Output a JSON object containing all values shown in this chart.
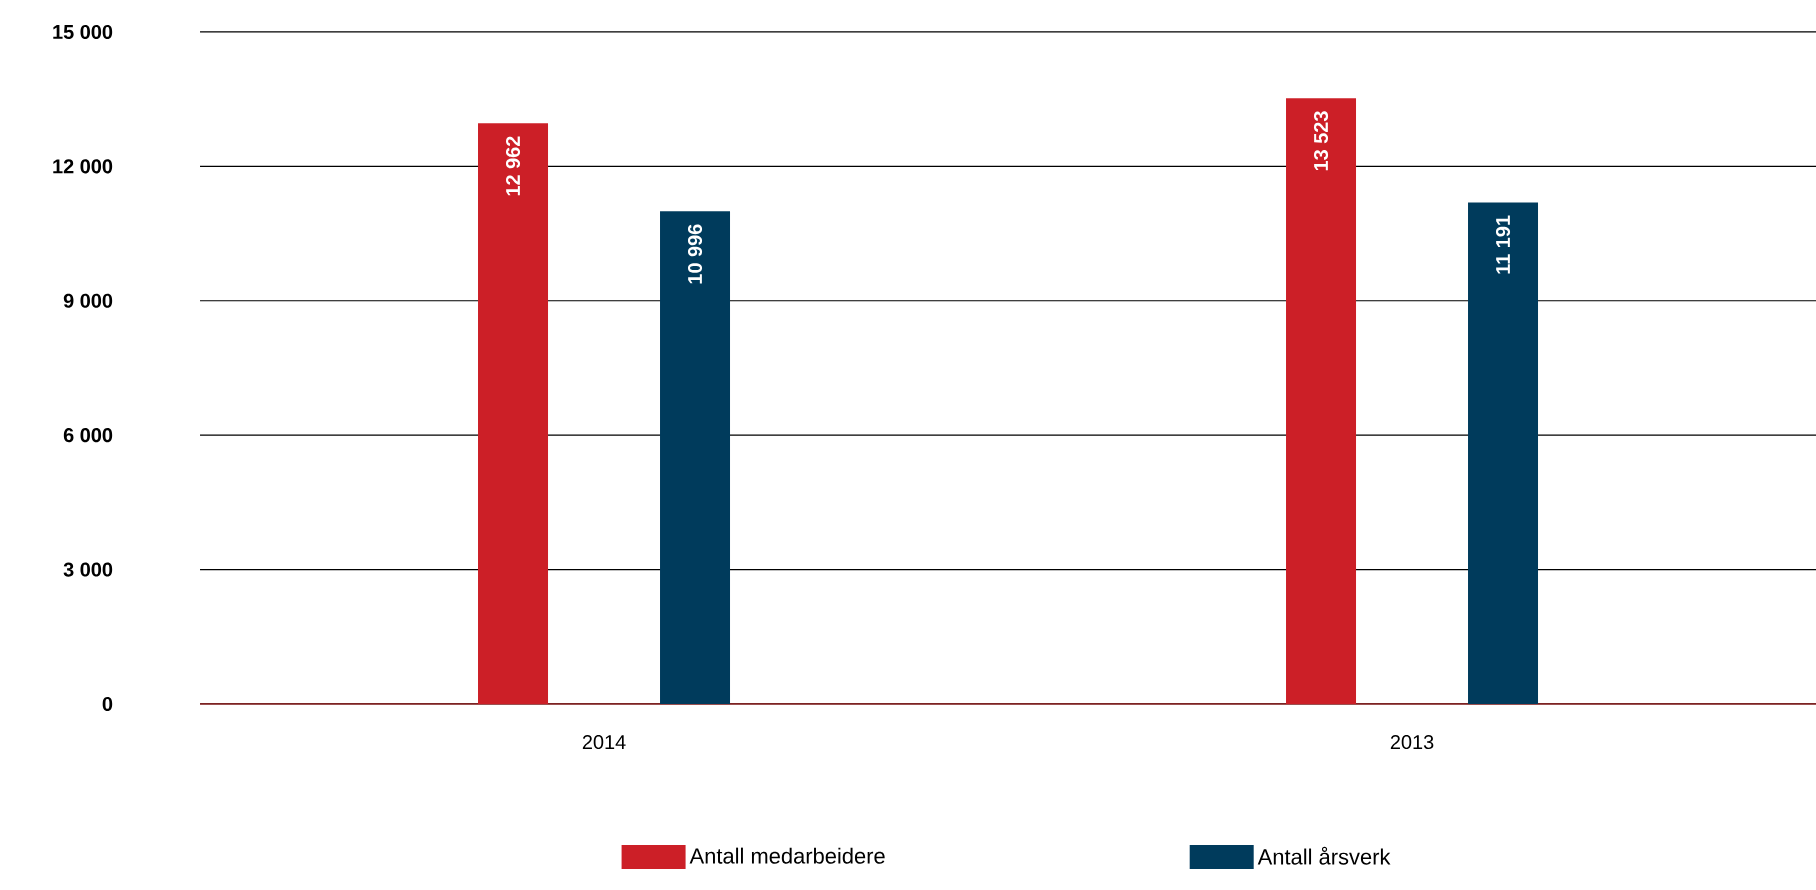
{
  "chart_data": {
    "type": "bar",
    "categories": [
      "2014",
      "2013"
    ],
    "series": [
      {
        "name": "Antall medarbeidere",
        "color": "#cc1f27",
        "values": [
          12962,
          13523
        ],
        "value_labels": [
          "12 962",
          "13 523"
        ]
      },
      {
        "name": "Antall årsverk",
        "color": "#003b5c",
        "values": [
          10996,
          11191
        ],
        "value_labels": [
          "10 996",
          "11 191"
        ]
      }
    ],
    "ylim": [
      0,
      15000
    ],
    "yticks": [
      {
        "value": 0,
        "label": "0"
      },
      {
        "value": 3000,
        "label": "3 000"
      },
      {
        "value": 6000,
        "label": "6 000"
      },
      {
        "value": 9000,
        "label": "9 000"
      },
      {
        "value": 12000,
        "label": "12 000"
      },
      {
        "value": 15000,
        "label": "15 000"
      }
    ],
    "grid": "y",
    "legend": "bottom"
  }
}
